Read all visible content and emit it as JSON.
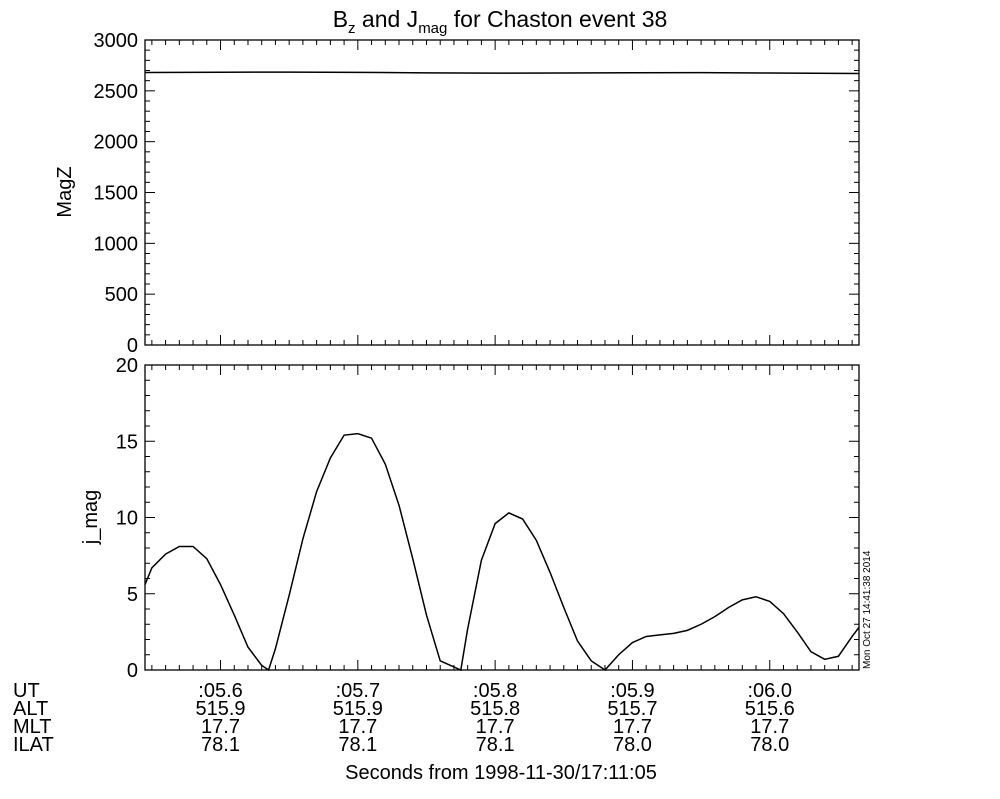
{
  "chart_data": [
    {
      "type": "line",
      "title_parts": {
        "b": "B",
        "b_sub": "z",
        "and": " and J",
        "j_sub": "mag",
        "rest": " for Chaston event 38"
      },
      "ylabel": "MagZ",
      "ylim": [
        0,
        3000
      ],
      "yticks": [
        "0",
        "500",
        "1000",
        "1500",
        "2000",
        "2500",
        "3000"
      ],
      "xlim": [
        5.545,
        6.065
      ],
      "series": [
        {
          "x": [
            5.545,
            5.6,
            5.65,
            5.7,
            5.75,
            5.8,
            5.85,
            5.9,
            5.95,
            6.0,
            6.065
          ],
          "y": [
            2680,
            2683,
            2684,
            2682,
            2677,
            2674,
            2675,
            2678,
            2679,
            2675,
            2670
          ]
        }
      ]
    },
    {
      "type": "line",
      "ylabel": "j_mag",
      "ylim": [
        0,
        20
      ],
      "yticks": [
        "0",
        "5",
        "10",
        "15",
        "20"
      ],
      "xlim": [
        5.545,
        6.065
      ],
      "series": [
        {
          "x": [
            5.545,
            5.55,
            5.56,
            5.57,
            5.58,
            5.59,
            5.6,
            5.61,
            5.62,
            5.63,
            5.635,
            5.64,
            5.65,
            5.66,
            5.67,
            5.68,
            5.69,
            5.7,
            5.71,
            5.72,
            5.73,
            5.74,
            5.75,
            5.76,
            5.775,
            5.78,
            5.79,
            5.8,
            5.81,
            5.82,
            5.83,
            5.84,
            5.85,
            5.86,
            5.87,
            5.88,
            5.89,
            5.9,
            5.91,
            5.92,
            5.93,
            5.94,
            5.95,
            5.96,
            5.97,
            5.98,
            5.99,
            6.0,
            6.01,
            6.02,
            6.03,
            6.04,
            6.05,
            6.06,
            6.065
          ],
          "y": [
            5.6,
            6.7,
            7.6,
            8.1,
            8.1,
            7.3,
            5.6,
            3.6,
            1.5,
            0.3,
            0.0,
            1.4,
            4.9,
            8.6,
            11.7,
            13.9,
            15.4,
            15.5,
            15.2,
            13.5,
            10.8,
            7.3,
            3.6,
            0.6,
            0.0,
            2.7,
            7.2,
            9.6,
            10.3,
            9.9,
            8.5,
            6.4,
            4.1,
            1.9,
            0.6,
            0.0,
            1.0,
            1.8,
            2.2,
            2.3,
            2.4,
            2.6,
            3.0,
            3.5,
            4.1,
            4.6,
            4.8,
            4.5,
            3.7,
            2.5,
            1.2,
            0.7,
            0.9,
            2.2,
            2.8
          ]
        }
      ]
    }
  ],
  "xaxis": {
    "tick_values": [
      5.6,
      5.7,
      5.8,
      5.9,
      6.0
    ],
    "rows": [
      {
        "label": "UT",
        "values": [
          ":05.6",
          ":05.7",
          ":05.8",
          ":05.9",
          ":06.0"
        ]
      },
      {
        "label": "ALT",
        "values": [
          "515.9",
          "515.9",
          "515.8",
          "515.7",
          "515.6"
        ]
      },
      {
        "label": "MLT",
        "values": [
          "17.7",
          "17.7",
          "17.7",
          "17.7",
          "17.7"
        ]
      },
      {
        "label": "ILAT",
        "values": [
          "78.1",
          "78.1",
          "78.1",
          "78.0",
          "78.0"
        ]
      }
    ],
    "xlabel": "Seconds from 1998-11-30/17:11:05"
  },
  "timestamp": "Mon Oct 27 14:41:38 2014"
}
